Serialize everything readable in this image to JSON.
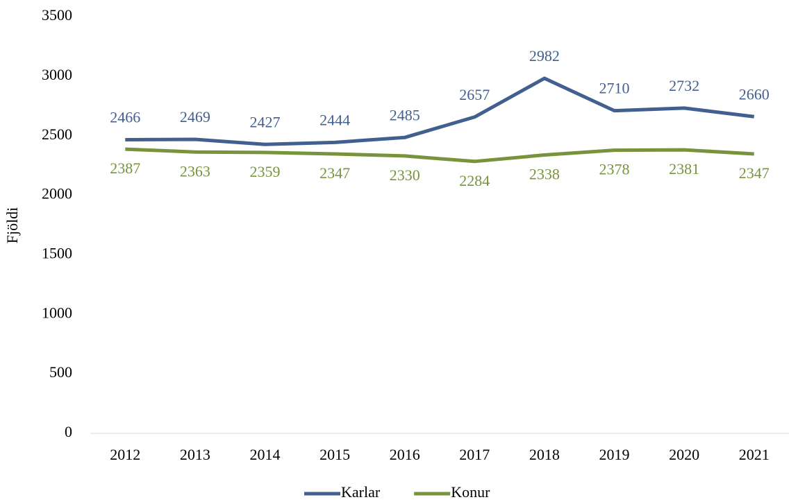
{
  "chart_data": {
    "type": "line",
    "y_label": "Fjöldi",
    "categories": [
      "2012",
      "2013",
      "2014",
      "2015",
      "2016",
      "2017",
      "2018",
      "2019",
      "2020",
      "2021"
    ],
    "series": [
      {
        "name": "Karlar",
        "color": "#41608f",
        "values": [
          2466,
          2469,
          2427,
          2444,
          2485,
          2657,
          2982,
          2710,
          2732,
          2660
        ]
      },
      {
        "name": "Konur",
        "color": "#77933c",
        "values": [
          2387,
          2363,
          2359,
          2347,
          2330,
          2284,
          2338,
          2378,
          2381,
          2347
        ]
      }
    ],
    "ylim": [
      0,
      3500
    ],
    "yticks": [
      0,
      500,
      1000,
      1500,
      2000,
      2500,
      3000,
      3500
    ],
    "grid": false,
    "legend": "bottom"
  }
}
